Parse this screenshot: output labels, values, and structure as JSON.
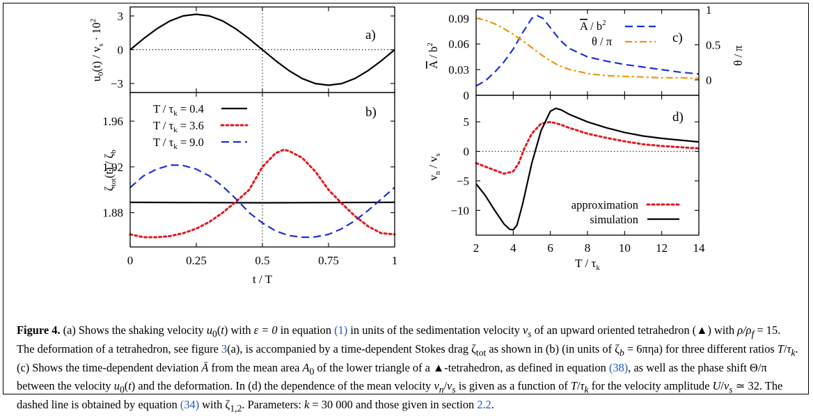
{
  "chart_data": [
    {
      "panel": "a)",
      "type": "line",
      "xlabel": "t / T",
      "ylabel": "u0(t) / vs · 10^2",
      "xlim": [
        0,
        1
      ],
      "ylim": [
        -3.8,
        3.8
      ],
      "xticks": [
        "0",
        "0.25",
        "0.5",
        "0.75",
        "1"
      ],
      "yticks": [
        "3",
        "0",
        "−3"
      ],
      "series": [
        {
          "color": "#000000",
          "dash": "solid",
          "x": [
            0,
            0.05,
            0.1,
            0.15,
            0.2,
            0.25,
            0.3,
            0.35,
            0.4,
            0.45,
            0.5,
            0.55,
            0.6,
            0.65,
            0.7,
            0.75,
            0.8,
            0.85,
            0.9,
            0.95,
            1.0
          ],
          "y": [
            0,
            0.97,
            1.85,
            2.55,
            3.0,
            3.15,
            3.0,
            2.55,
            1.85,
            0.97,
            0,
            -0.97,
            -1.85,
            -2.55,
            -3.0,
            -3.15,
            -3.0,
            -2.55,
            -1.85,
            -0.97,
            0
          ]
        }
      ]
    },
    {
      "panel": "b)",
      "type": "line",
      "xlabel": "t / T",
      "ylabel": "ζtot(t) / ζb",
      "xlim": [
        0,
        1
      ],
      "ylim": [
        1.85,
        1.985
      ],
      "xticks": [
        "0",
        "0.25",
        "0.5",
        "0.75",
        "1"
      ],
      "yticks": [
        "1.96",
        "1.92",
        "1.88"
      ],
      "series": [
        {
          "name": "T / τk = 0.4",
          "color": "#000000",
          "dash": "solid",
          "x": [
            0,
            0.25,
            0.5,
            0.75,
            1.0
          ],
          "y": [
            1.889,
            1.8888,
            1.8886,
            1.8888,
            1.889
          ]
        },
        {
          "name": "T / τk = 3.6",
          "color": "#e8141b",
          "dash": "dotted",
          "x": [
            0,
            0.05,
            0.1,
            0.15,
            0.2,
            0.25,
            0.3,
            0.35,
            0.4,
            0.45,
            0.5,
            0.55,
            0.58,
            0.6,
            0.65,
            0.7,
            0.75,
            0.8,
            0.85,
            0.9,
            0.95,
            1.0
          ],
          "y": [
            1.861,
            1.8585,
            1.8585,
            1.8595,
            1.862,
            1.866,
            1.872,
            1.88,
            1.8895,
            1.9,
            1.92,
            1.932,
            1.935,
            1.934,
            1.928,
            1.916,
            1.9,
            1.888,
            1.877,
            1.868,
            1.862,
            1.861
          ]
        },
        {
          "name": "T / τk = 9.0",
          "color": "#1a2fe0",
          "dash": "dashed",
          "x": [
            0,
            0.05,
            0.1,
            0.15,
            0.18,
            0.2,
            0.25,
            0.3,
            0.35,
            0.4,
            0.45,
            0.5,
            0.55,
            0.6,
            0.65,
            0.68,
            0.7,
            0.75,
            0.8,
            0.85,
            0.9,
            0.95,
            1.0
          ],
          "y": [
            1.902,
            1.912,
            1.918,
            1.9215,
            1.9215,
            1.9212,
            1.918,
            1.912,
            1.903,
            1.892,
            1.88,
            1.871,
            1.864,
            1.86,
            1.8585,
            1.8585,
            1.8588,
            1.861,
            1.866,
            1.873,
            1.882,
            1.892,
            1.902
          ]
        }
      ]
    },
    {
      "panel": "c)",
      "type": "line",
      "ylabel": "Ā / b²",
      "y2label": "θ / π",
      "xlim": [
        2,
        14
      ],
      "ylim": [
        0,
        0.1
      ],
      "y2lim": [
        -0.22,
        1.0
      ],
      "yticks": [
        "0.09",
        "0.06",
        "0.03",
        "0"
      ],
      "y2ticks": [
        "1",
        "0.5",
        "0"
      ],
      "series": [
        {
          "name": "Ā / b²",
          "axis": "left",
          "color": "#1a2fe0",
          "dash": "dashed",
          "x": [
            2,
            2.5,
            3,
            3.5,
            4,
            4.5,
            5,
            5.3,
            5.6,
            6,
            6.5,
            7,
            8,
            9,
            10,
            11,
            12,
            13,
            14
          ],
          "y": [
            0.011,
            0.017,
            0.027,
            0.039,
            0.054,
            0.073,
            0.09,
            0.093,
            0.09,
            0.079,
            0.065,
            0.055,
            0.045,
            0.04,
            0.036,
            0.033,
            0.03,
            0.027,
            0.025
          ]
        },
        {
          "name": "θ / π",
          "axis": "right",
          "color": "#f0960a",
          "dash": "dashdot",
          "x": [
            2,
            2.5,
            3,
            3.5,
            4,
            4.5,
            5,
            5.5,
            6,
            6.5,
            7,
            8,
            9,
            10,
            11,
            12,
            13,
            14
          ],
          "y": [
            0.88,
            0.85,
            0.8,
            0.73,
            0.65,
            0.56,
            0.46,
            0.36,
            0.27,
            0.2,
            0.15,
            0.09,
            0.06,
            0.05,
            0.04,
            0.03,
            0.03,
            0.02
          ]
        }
      ]
    },
    {
      "panel": "d)",
      "type": "line",
      "xlabel": "T / τk",
      "ylabel": "vn / vs",
      "xlim": [
        2,
        14
      ],
      "ylim": [
        -14.2,
        9.5
      ],
      "xticks": [
        "2",
        "4",
        "6",
        "8",
        "10",
        "12",
        "14"
      ],
      "yticks": [
        "5",
        "0",
        "−5",
        "−10"
      ],
      "series": [
        {
          "name": "approximation",
          "color": "#e8141b",
          "dash": "dotted",
          "x": [
            2,
            2.5,
            3,
            3.5,
            4,
            4.3,
            4.6,
            5,
            5.5,
            6,
            6.5,
            7,
            8,
            9,
            10,
            11,
            12,
            13,
            14
          ],
          "y": [
            -2.0,
            -2.6,
            -3.2,
            -3.8,
            -3.4,
            -2.0,
            0.5,
            3.0,
            4.7,
            5.0,
            4.6,
            4.0,
            3.0,
            2.3,
            1.7,
            1.2,
            0.9,
            0.7,
            0.5
          ]
        },
        {
          "name": "simulation",
          "color": "#000000",
          "dash": "solid",
          "x": [
            2,
            2.5,
            3,
            3.5,
            3.8,
            4,
            4.2,
            4.5,
            5,
            5.5,
            6,
            6.3,
            6.6,
            7,
            8,
            9,
            10,
            11,
            12,
            13,
            14
          ],
          "y": [
            -5.5,
            -7.5,
            -10.0,
            -12.3,
            -13.2,
            -13.3,
            -12.5,
            -9.0,
            -2.0,
            3.5,
            6.8,
            7.3,
            7.0,
            6.3,
            5.0,
            4.0,
            3.2,
            2.6,
            2.2,
            1.9,
            1.6
          ]
        }
      ]
    }
  ],
  "caption": {
    "label": "Figure 4.",
    "text_1": " (a) Shows the shaking velocity ",
    "math_u0t": "u",
    "text_2": " with ",
    "math_eps": "ε = 0",
    "text_3": " in equation ",
    "ref_eq1": "(1)",
    "text_4": " in units of the sedimentation velocity ",
    "text_5": " of an upward oriented tetrahedron (▲) with ",
    "math_rho": "ρ/ρ",
    "text_6": " = 15. The deformation of a tetrahedron, see figure ",
    "ref_fig3": "3",
    "text_7": "(a), is accompanied by a time-dependent Stokes drag ζ",
    "text_8": " as shown in (b) (in units of ζ",
    "text_9": " = 6πηa) for three different ratios ",
    "text_10": ". (c) Shows the time-dependent deviation ",
    "text_11": " from the mean area ",
    "text_12": " of the lower triangle of a ▲-tetrahedron, as defined in equation ",
    "ref_eq38": "(38)",
    "text_13": ", as well as the phase shift Θ/π between the velocity ",
    "text_14": " and the deformation. In (d) the dependence of the mean velocity ",
    "text_15": " is given as a function of ",
    "text_16": " for the velocity amplitude ",
    "text_17": " ≃ 32. The dashed line is obtained by equation ",
    "ref_eq34": "(34)",
    "text_18": " with ζ",
    "text_19": ". Parameters: ",
    "math_k": "k",
    "text_20": " = 30 000 and those given in section ",
    "ref_sec": "2.2",
    "text_21": "."
  }
}
